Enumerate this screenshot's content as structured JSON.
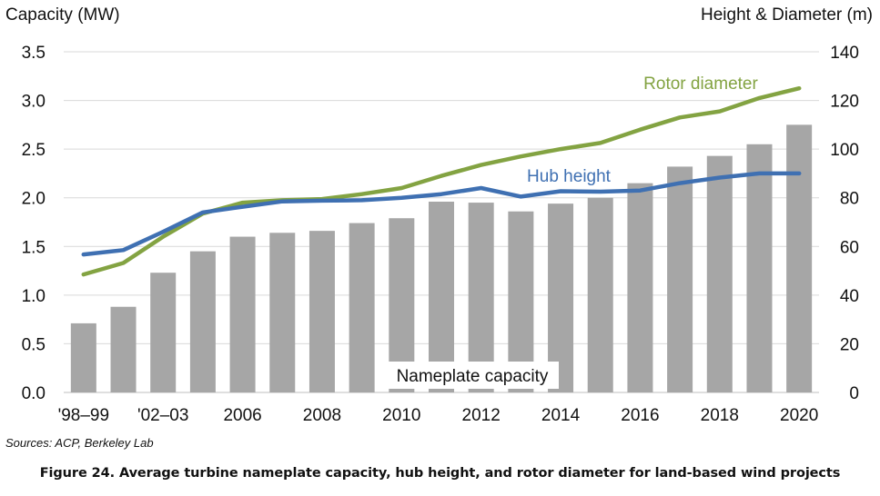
{
  "chart_data": {
    "type": "bar",
    "categories": [
      "'98–99",
      "2000–01",
      "'02–03",
      "2004–05",
      "2006",
      "2007",
      "2008",
      "2009",
      "2010",
      "2011",
      "2012",
      "2013",
      "2014",
      "2015",
      "2016",
      "2017",
      "2018",
      "2019",
      "2020"
    ],
    "x_tick_labels": [
      "'98–99",
      "'02–03",
      "2006",
      "2008",
      "2010",
      "2012",
      "2014",
      "2016",
      "2018",
      "2020"
    ],
    "ylabel": "Capacity (MW)",
    "ylabel_right": "Height & Diameter (m)",
    "ylim": [
      0,
      3.5
    ],
    "ylim_right": [
      0,
      140
    ],
    "yticks_left": [
      "0.0",
      "0.5",
      "1.0",
      "1.5",
      "2.0",
      "2.5",
      "3.0",
      "3.5"
    ],
    "yticks_right": [
      "0",
      "20",
      "40",
      "60",
      "80",
      "100",
      "120",
      "140"
    ],
    "grid": true,
    "series": [
      {
        "name": "Nameplate capacity",
        "type": "bar",
        "axis": "left",
        "color": "#a6a6a6",
        "values": [
          0.71,
          0.88,
          1.23,
          1.45,
          1.6,
          1.64,
          1.66,
          1.74,
          1.79,
          1.96,
          1.95,
          1.86,
          1.94,
          2.0,
          2.15,
          2.32,
          2.43,
          2.55,
          2.75
        ]
      },
      {
        "name": "Hub height",
        "type": "line",
        "axis": "right",
        "color": "#3f70b2",
        "values": [
          56.7,
          58.5,
          66.0,
          74.0,
          76.3,
          78.5,
          78.8,
          79.0,
          80.0,
          81.5,
          84.0,
          80.5,
          82.7,
          82.5,
          83.0,
          86.0,
          88.3,
          90.0,
          90.0
        ]
      },
      {
        "name": "Rotor diameter",
        "type": "line",
        "axis": "right",
        "color": "#83a342",
        "values": [
          48.5,
          53.2,
          64.0,
          73.5,
          78.0,
          79.0,
          79.5,
          81.5,
          84.0,
          89.0,
          93.5,
          97.0,
          100.0,
          102.5,
          108.0,
          113.0,
          115.5,
          121.0,
          125.0
        ]
      }
    ]
  },
  "labels": {
    "y_left_title": "Capacity (MW)",
    "y_right_title": "Height & Diameter (m)",
    "bar_series": "Nameplate capacity",
    "hub_series": "Hub height",
    "rotor_series": "Rotor diameter",
    "source": "Sources: ACP, Berkeley Lab",
    "caption": "Figure 24. Average turbine nameplate capacity, hub height, and rotor diameter for land-based wind projects"
  }
}
